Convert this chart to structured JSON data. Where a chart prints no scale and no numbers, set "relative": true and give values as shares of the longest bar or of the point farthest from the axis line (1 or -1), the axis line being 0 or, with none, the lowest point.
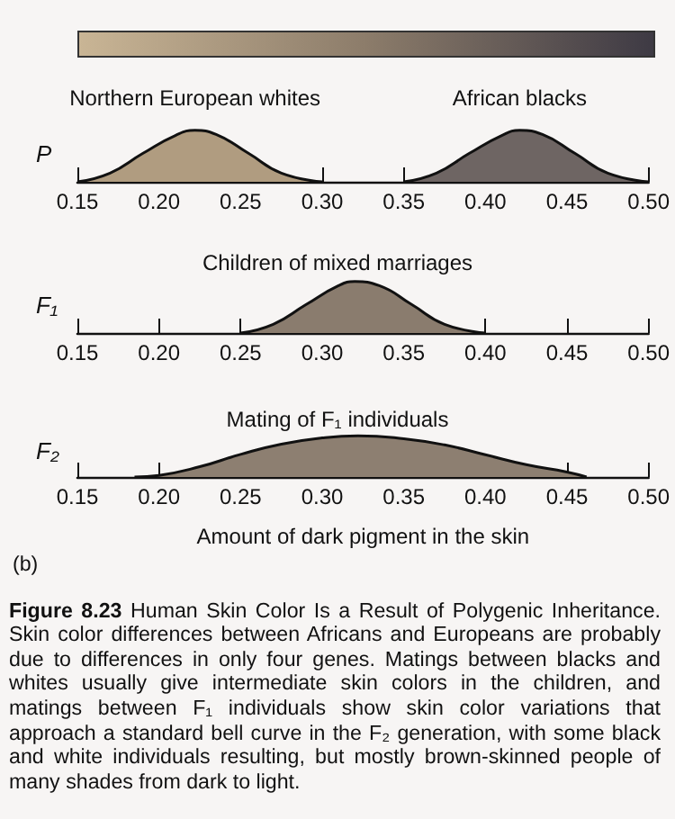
{
  "chart_data": [
    {
      "type": "area",
      "ylabel": "P",
      "relative": true,
      "xlim": [
        0.15,
        0.5
      ],
      "xticks": [
        0.15,
        {
          "value": 0.2,
          "label": "0.20"
        },
        0.25,
        {
          "value": 0.3,
          "label": "0.30"
        },
        0.35,
        {
          "value": 0.4,
          "label": "0.40"
        },
        0.45,
        {
          "value": 0.5,
          "label": "0.50"
        }
      ],
      "series": [
        {
          "name": "Northern European whites",
          "color": "#b09c80",
          "x": [
            0.15,
            0.17,
            0.19,
            0.21,
            0.222,
            0.235,
            0.255,
            0.275,
            0.3
          ],
          "values": [
            0,
            0.17,
            0.55,
            0.9,
            1,
            0.92,
            0.55,
            0.17,
            0
          ]
        },
        {
          "name": "African blacks",
          "color": "#6e6563",
          "x": [
            0.35,
            0.37,
            0.39,
            0.41,
            0.421,
            0.435,
            0.455,
            0.475,
            0.5
          ],
          "values": [
            0,
            0.17,
            0.55,
            0.9,
            1,
            0.92,
            0.55,
            0.17,
            0
          ]
        }
      ]
    },
    {
      "type": "area",
      "title": "Children of mixed marriages",
      "ylabel": "F₁",
      "relative": true,
      "xlim": [
        0.15,
        0.5
      ],
      "xticks": [
        0.15,
        {
          "value": 0.2,
          "label": "0.20"
        },
        0.25,
        {
          "value": 0.3,
          "label": "0.30"
        },
        0.35,
        {
          "value": 0.4,
          "label": "0.40"
        },
        0.45,
        {
          "value": 0.5,
          "label": "0.50"
        }
      ],
      "series": [
        {
          "color": "#8a7c6e",
          "x": [
            0.25,
            0.27,
            0.29,
            0.31,
            0.32,
            0.335,
            0.355,
            0.375,
            0.4
          ],
          "values": [
            0,
            0.17,
            0.55,
            0.92,
            1,
            0.92,
            0.55,
            0.17,
            0
          ]
        }
      ]
    },
    {
      "type": "area",
      "title": "Mating of F₁ individuals",
      "ylabel": "F₂",
      "xlabel": "Amount of dark pigment in the skin",
      "relative": true,
      "xlim": [
        0.15,
        0.5
      ],
      "xticks": [
        0.15,
        {
          "value": 0.2,
          "label": "0.20"
        },
        0.25,
        {
          "value": 0.3,
          "label": "0.30"
        },
        0.35,
        {
          "value": 0.4,
          "label": "0.40"
        },
        0.45,
        {
          "value": 0.5,
          "label": "0.50"
        }
      ],
      "series": [
        {
          "color": "#8d7f71",
          "x": [
            0.185,
            0.2,
            0.225,
            0.25,
            0.275,
            0.3,
            0.322,
            0.35,
            0.375,
            0.4,
            0.425,
            0.45,
            0.462
          ],
          "values": [
            0,
            0.04,
            0.25,
            0.55,
            0.8,
            0.95,
            1,
            0.93,
            0.78,
            0.54,
            0.3,
            0.12,
            0
          ]
        }
      ],
      "annotations": [
        "(b)",
        "Figure 8.23",
        "Human Skin Color Is a Result of Polygenic Inheritance.",
        "Skin color differences between Africans and Europeans are probably due to differences in only four genes. Matings between blacks and whites usually give intermediate skin colors in the children, and matings between F₁ individuals show skin color variations that approach a standard bell curve in the F₂ generation, with some black and white individuals resulting, but mostly brown-skinned people of many shades from dark to light."
      ]
    }
  ]
}
